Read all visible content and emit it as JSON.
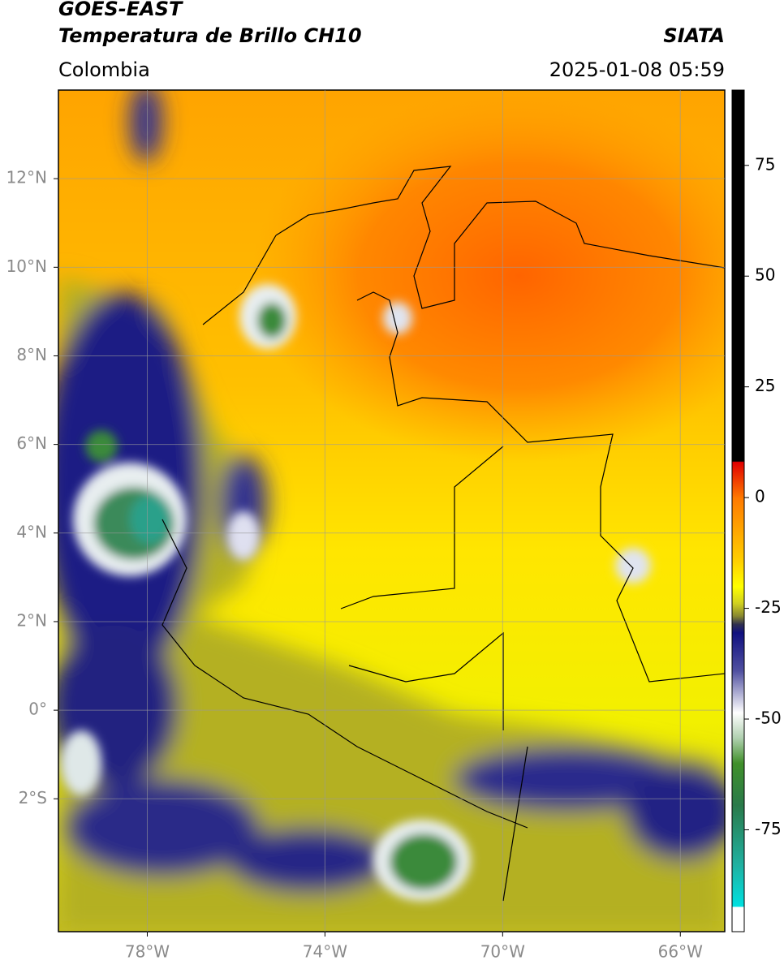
{
  "header": {
    "title": "GOES-EAST",
    "subtitle": "Temperatura de Brillo CH10",
    "source": "SIATA",
    "region": "Colombia",
    "timestamp": "2025-01-08 05:59"
  },
  "map": {
    "xlim": [
      -80,
      -65
    ],
    "ylim": [
      -5,
      14
    ],
    "xticks": [
      {
        "value": -78,
        "label": "78°W"
      },
      {
        "value": -74,
        "label": "74°W"
      },
      {
        "value": -70,
        "label": "70°W"
      },
      {
        "value": -66,
        "label": "66°W"
      }
    ],
    "yticks": [
      {
        "value": 12,
        "label": "12°N"
      },
      {
        "value": 10,
        "label": "10°N"
      },
      {
        "value": 8,
        "label": "8°N"
      },
      {
        "value": 6,
        "label": "6°N"
      },
      {
        "value": 4,
        "label": "4°N"
      },
      {
        "value": 2,
        "label": "2°N"
      },
      {
        "value": 0,
        "label": "0°"
      },
      {
        "value": -2,
        "label": "2°S"
      }
    ],
    "grid": true
  },
  "colorbar": {
    "lim": [
      -98,
      92
    ],
    "ticks": [
      75,
      50,
      25,
      0,
      -25,
      -50,
      -75
    ]
  }
}
